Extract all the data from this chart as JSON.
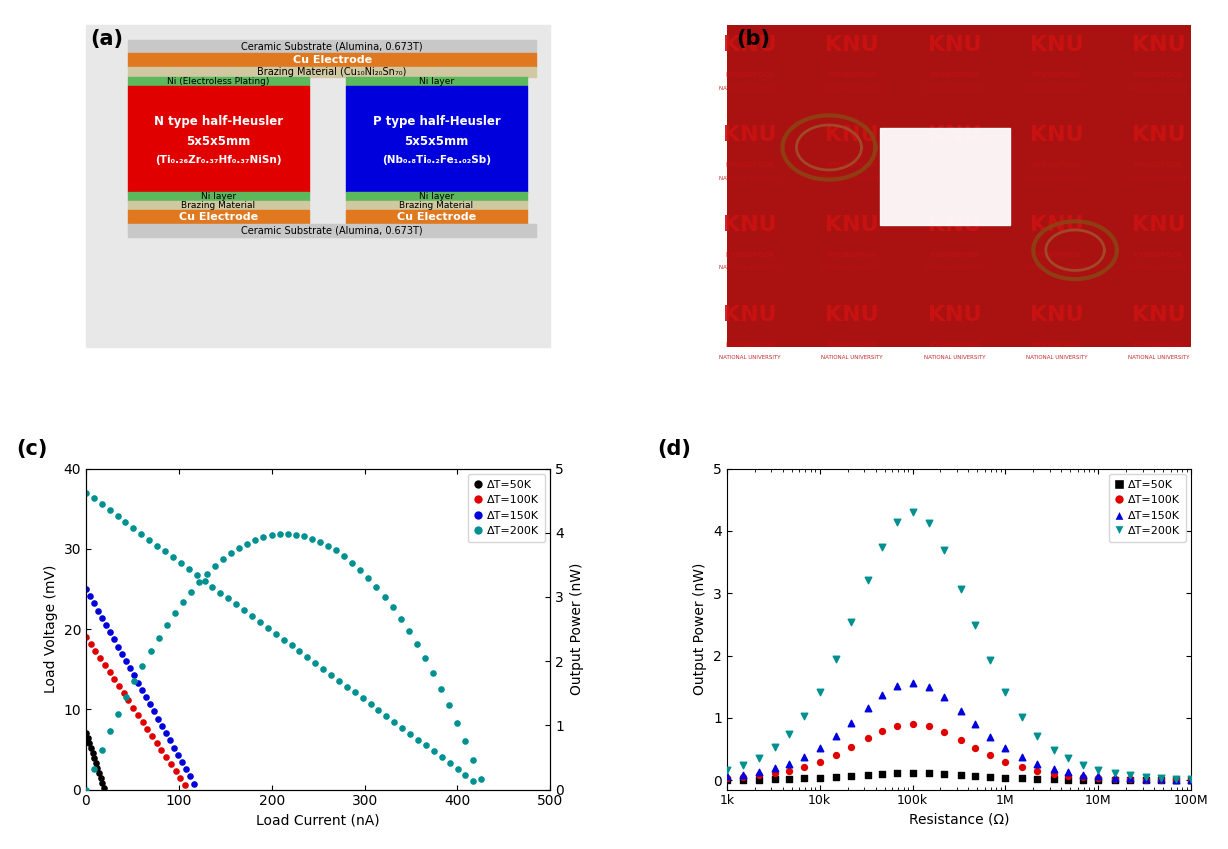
{
  "panel_a": {
    "bg_color": "#e8e8e8",
    "ceramic_color": "#c8c8c8",
    "cu_color": "#e07820",
    "brazing_color": "#d0c8a0",
    "ni_color": "#5cb85c",
    "n_color": "#e00000",
    "p_color": "#0000dd",
    "ceramic_label": "Ceramic Substrate (Alumina, 0.673T)",
    "cu_label": "Cu Electrode",
    "brazing_top_label": "Brazing Material (Cu₁₀Ni₂₀Sn₇₀)",
    "brazing_bot_label": "Brazing Material",
    "ni_n_top_label": "Ni (Electroless Plating)",
    "ni_p_top_label": "Ni layer",
    "ni_bot_label": "Ni layer",
    "n_label1": "N type half-Heusler",
    "n_label2": "5x5x5mm",
    "n_label3": "(Ti₀.₂₆Zr₀.₃₇Hf₀.₃₇NiSn)",
    "p_label1": "P type half-Heusler",
    "p_label2": "5x5x5mm",
    "p_label3": "(Nb₀.₈Ti₀.₂Fe₁.₀₂Sb)"
  },
  "panel_c": {
    "xlim": [
      0,
      500
    ],
    "ylim_left": [
      0,
      40
    ],
    "ylim_right": [
      0,
      5
    ],
    "xlabel": "Load Current (nA)",
    "ylabel_left": "Load Voltage (mV)",
    "ylabel_right": "Output Power (nW)",
    "xticks": [
      0,
      100,
      200,
      300,
      400,
      500
    ],
    "yticks_left": [
      0,
      10,
      20,
      30,
      40
    ],
    "yticks_right": [
      0,
      1,
      2,
      3,
      4,
      5
    ],
    "colors": {
      "dT50": "#000000",
      "dT100": "#e00000",
      "dT150": "#0000dd",
      "dT200": "#009090"
    },
    "legend": [
      "ΔT=50K",
      "ΔT=100K",
      "ΔT=150K",
      "ΔT=200K"
    ]
  },
  "panel_d": {
    "xlim": [
      1000,
      100000000
    ],
    "ylim": [
      -0.15,
      5
    ],
    "xlabel": "Resistance (Ω)",
    "ylabel": "Output Power (nW)",
    "xticks": [
      1000,
      10000,
      100000,
      1000000,
      10000000,
      100000000
    ],
    "xticklabels": [
      "1k",
      "10k",
      "100k",
      "1M",
      "10M",
      "100M"
    ],
    "yticks": [
      0,
      1,
      2,
      3,
      4,
      5
    ],
    "colors": {
      "dT50": "#000000",
      "dT100": "#e00000",
      "dT150": "#0000dd",
      "dT200": "#009090"
    },
    "markers": {
      "dT50": "s",
      "dT100": "o",
      "dT150": "^",
      "dT200": "v"
    },
    "legend": [
      "ΔT=50K",
      "ΔT=100K",
      "ΔT=150K",
      "ΔT=200K"
    ]
  }
}
